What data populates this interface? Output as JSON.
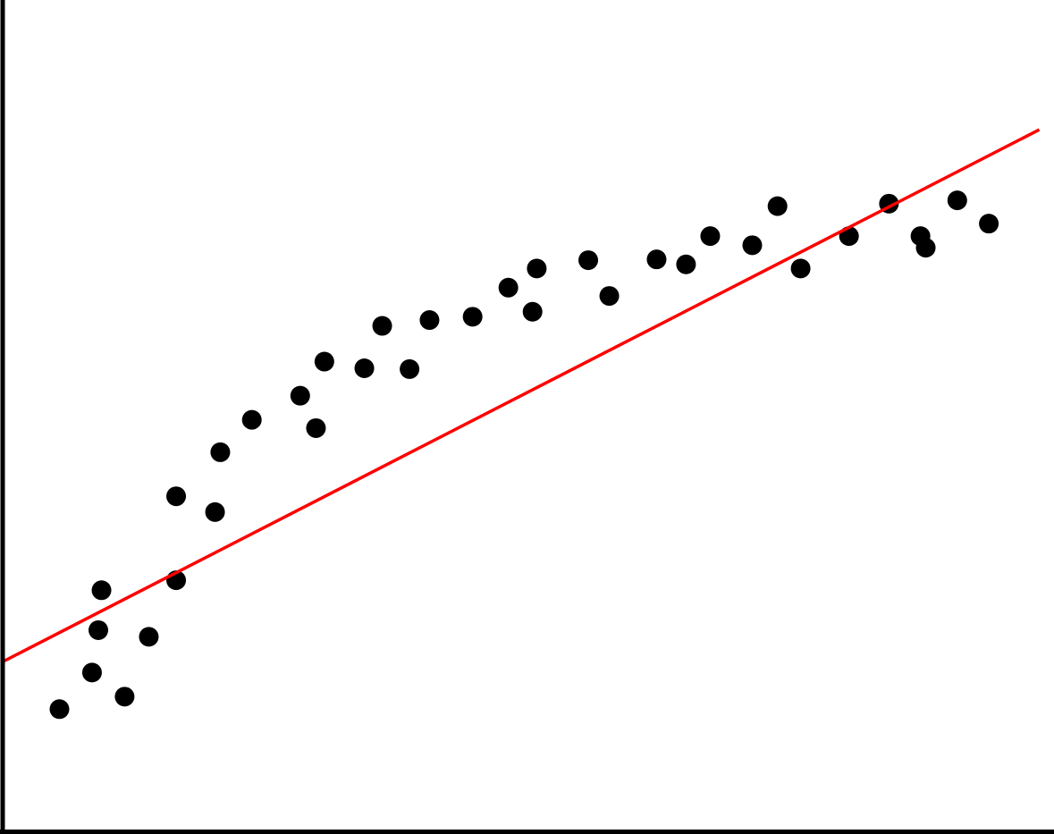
{
  "chart_data": {
    "type": "scatter",
    "title": "",
    "xlabel": "",
    "ylabel": "",
    "xlim": [
      0,
      100
    ],
    "ylim": [
      0,
      100
    ],
    "grid": false,
    "ticks_shown": false,
    "colors": {
      "points": "#000000",
      "fit_line": "#ff0000",
      "axes": "#000000"
    },
    "points": [
      [
        5.4,
        14.7
      ],
      [
        8.5,
        19.1
      ],
      [
        11.6,
        16.2
      ],
      [
        9.1,
        24.2
      ],
      [
        9.4,
        29.0
      ],
      [
        13.9,
        23.4
      ],
      [
        16.5,
        30.2
      ],
      [
        16.5,
        40.3
      ],
      [
        20.2,
        38.4
      ],
      [
        20.7,
        45.6
      ],
      [
        23.7,
        49.5
      ],
      [
        28.3,
        52.4
      ],
      [
        29.8,
        48.5
      ],
      [
        30.6,
        56.5
      ],
      [
        34.4,
        55.7
      ],
      [
        36.1,
        60.8
      ],
      [
        38.7,
        55.6
      ],
      [
        40.6,
        61.5
      ],
      [
        44.7,
        61.9
      ],
      [
        48.1,
        65.4
      ],
      [
        50.4,
        62.5
      ],
      [
        50.8,
        67.7
      ],
      [
        55.7,
        68.7
      ],
      [
        57.7,
        64.4
      ],
      [
        62.2,
        68.8
      ],
      [
        65.0,
        68.2
      ],
      [
        67.3,
        71.6
      ],
      [
        71.3,
        70.5
      ],
      [
        73.7,
        75.2
      ],
      [
        75.9,
        67.7
      ],
      [
        80.5,
        71.6
      ],
      [
        84.3,
        75.5
      ],
      [
        87.3,
        71.6
      ],
      [
        87.8,
        70.2
      ],
      [
        90.8,
        75.9
      ],
      [
        93.8,
        73.1
      ]
    ],
    "fit_line": {
      "x": [
        0,
        98.6
      ],
      "y": [
        20.4,
        84.4
      ]
    }
  }
}
